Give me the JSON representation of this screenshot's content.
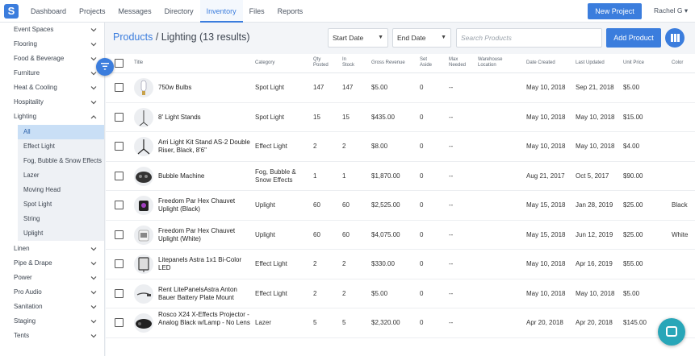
{
  "nav": {
    "logo": "S",
    "links": [
      "Dashboard",
      "Projects",
      "Messages",
      "Directory",
      "Inventory",
      "Files",
      "Reports"
    ],
    "active": "Inventory",
    "new_project": "New Project",
    "user": "Rachel G"
  },
  "sidebar": {
    "before": [
      "Event Spaces",
      "Flooring",
      "Food & Beverage",
      "Furniture",
      "Heat & Cooling",
      "Hospitality"
    ],
    "open_category": "Lighting",
    "subs": [
      "All",
      "Effect Light",
      "Fog, Bubble & Snow Effects",
      "Lazer",
      "Moving Head",
      "Spot Light",
      "String",
      "Uplight"
    ],
    "active_sub": "All",
    "after": [
      "Linen",
      "Pipe & Drape",
      "Power",
      "Pro Audio",
      "Sanitation",
      "Staging",
      "Tents"
    ]
  },
  "toolbar": {
    "crumb_root": "Products",
    "crumb_rest": " / Lighting (13 results)",
    "start_date": "Start Date",
    "end_date": "End Date",
    "search_placeholder": "Search Products",
    "add_product": "Add Product"
  },
  "table": {
    "headers": {
      "title": "Title",
      "category": "Category",
      "qty_posted": "Qty\nPosted",
      "in_stock": "In\nStock",
      "gross_revenue": "Gross Revenue",
      "set_aside": "Set\nAside",
      "max_needed": "Max\nNeeded",
      "warehouse": "Warehouse\nLocation",
      "date_created": "Date Created",
      "last_updated": "Last Updated",
      "unit_price": "Unit Price",
      "color": "Color"
    },
    "rows": [
      {
        "title": "750w Bulbs",
        "category": "Spot Light",
        "qty": "147",
        "stock": "147",
        "revenue": "$5.00",
        "aside": "0",
        "max": "--",
        "created": "May 10, 2018",
        "updated": "Sep 21, 2018",
        "price": "$5.00",
        "color": "",
        "thumb": "bulb"
      },
      {
        "title": "8' Light Stands",
        "category": "Spot Light",
        "qty": "15",
        "stock": "15",
        "revenue": "$435.00",
        "aside": "0",
        "max": "--",
        "created": "May 10, 2018",
        "updated": "May 10, 2018",
        "price": "$15.00",
        "color": "",
        "thumb": "stand"
      },
      {
        "title": "Arri Light Kit Stand AS-2 Double Riser, Black, 8'6\"",
        "category": "Effect Light",
        "qty": "2",
        "stock": "2",
        "revenue": "$8.00",
        "aside": "0",
        "max": "--",
        "created": "May 10, 2018",
        "updated": "May 10, 2018",
        "price": "$4.00",
        "color": "",
        "thumb": "tripod"
      },
      {
        "title": "Bubble Machine",
        "category": "Fog, Bubble & Snow Effects",
        "qty": "1",
        "stock": "1",
        "revenue": "$1,870.00",
        "aside": "0",
        "max": "--",
        "created": "Aug 21, 2017",
        "updated": "Oct 5, 2017",
        "price": "$90.00",
        "color": "",
        "thumb": "machine"
      },
      {
        "title": "Freedom Par Hex Chauvet Uplight (Black)",
        "category": "Uplight",
        "qty": "60",
        "stock": "60",
        "revenue": "$2,525.00",
        "aside": "0",
        "max": "--",
        "created": "May 15, 2018",
        "updated": "Jan 28, 2019",
        "price": "$25.00",
        "color": "Black",
        "thumb": "uplight-black"
      },
      {
        "title": "Freedom Par Hex Chauvet Uplight (White)",
        "category": "Uplight",
        "qty": "60",
        "stock": "60",
        "revenue": "$4,075.00",
        "aside": "0",
        "max": "--",
        "created": "May 15, 2018",
        "updated": "Jun 12, 2019",
        "price": "$25.00",
        "color": "White",
        "thumb": "uplight-white"
      },
      {
        "title": "Litepanels Astra 1x1 Bi-Color LED",
        "category": "Effect Light",
        "qty": "2",
        "stock": "2",
        "revenue": "$330.00",
        "aside": "0",
        "max": "--",
        "created": "May 10, 2018",
        "updated": "Apr 16, 2019",
        "price": "$55.00",
        "color": "",
        "thumb": "panel"
      },
      {
        "title": "Rent LitePanelsAstra Anton Bauer Battery Plate Mount",
        "category": "Effect Light",
        "qty": "2",
        "stock": "2",
        "revenue": "$5.00",
        "aside": "0",
        "max": "--",
        "created": "May 10, 2018",
        "updated": "May 10, 2018",
        "price": "$5.00",
        "color": "",
        "thumb": "mount"
      },
      {
        "title": "Rosco X24 X-Effects Projector - Analog Black w/Lamp - No Lens",
        "category": "Lazer",
        "qty": "5",
        "stock": "5",
        "revenue": "$2,320.00",
        "aside": "0",
        "max": "--",
        "created": "Apr 20, 2018",
        "updated": "Apr 20, 2018",
        "price": "$145.00",
        "color": "",
        "thumb": "projector"
      }
    ]
  },
  "colors": {
    "accent": "#3b7ddd",
    "chat": "#28a6b8"
  }
}
